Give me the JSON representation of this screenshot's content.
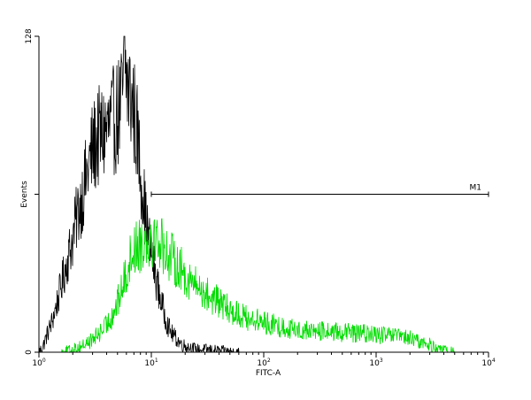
{
  "chart_data": {
    "type": "histogram",
    "xlabel": "FITC-A",
    "ylabel": "Events",
    "x_scale": "log",
    "xlim": [
      1,
      10000
    ],
    "ylim": [
      0,
      128
    ],
    "x_ticks": [
      {
        "value": 1,
        "base": "10",
        "exp": "0"
      },
      {
        "value": 10,
        "base": "10",
        "exp": "1"
      },
      {
        "value": 100,
        "base": "10",
        "exp": "2"
      },
      {
        "value": 1000,
        "base": "10",
        "exp": "3"
      },
      {
        "value": 10000,
        "base": "10",
        "exp": "4"
      }
    ],
    "y_ticks": [
      {
        "value": 0,
        "label": "0"
      },
      {
        "value": 64,
        "label": ""
      },
      {
        "value": 128,
        "label": "128"
      }
    ],
    "marker": {
      "label": "M1",
      "x_start": 10,
      "x_end": 10000,
      "y": 64
    },
    "series": [
      {
        "color": "#000000",
        "points": [
          [
            1.0,
            0
          ],
          [
            1.1,
            3
          ],
          [
            1.2,
            8
          ],
          [
            1.3,
            12
          ],
          [
            1.45,
            20
          ],
          [
            1.6,
            28
          ],
          [
            1.8,
            38
          ],
          [
            2.0,
            46
          ],
          [
            2.2,
            56
          ],
          [
            2.5,
            66
          ],
          [
            2.8,
            76
          ],
          [
            3.0,
            82
          ],
          [
            3.3,
            86
          ],
          [
            3.6,
            88
          ],
          [
            4.0,
            90
          ],
          [
            4.4,
            92
          ],
          [
            4.8,
            95
          ],
          [
            5.2,
            98
          ],
          [
            5.5,
            102
          ],
          [
            5.8,
            118
          ],
          [
            6.1,
            108
          ],
          [
            6.5,
            104
          ],
          [
            7.0,
            98
          ],
          [
            7.5,
            88
          ],
          [
            8.0,
            74
          ],
          [
            8.5,
            64
          ],
          [
            9.0,
            52
          ],
          [
            10.0,
            40
          ],
          [
            11.0,
            30
          ],
          [
            12.0,
            22
          ],
          [
            13.0,
            16
          ],
          [
            14.0,
            11
          ],
          [
            15.0,
            8
          ],
          [
            17.0,
            5
          ],
          [
            19.0,
            3
          ],
          [
            22.0,
            2
          ],
          [
            26.0,
            1
          ],
          [
            32.0,
            1
          ],
          [
            40.0,
            0.5
          ],
          [
            60.0,
            0
          ]
        ]
      },
      {
        "color": "#00dd00",
        "points": [
          [
            1.6,
            0
          ],
          [
            2.0,
            1
          ],
          [
            2.5,
            3
          ],
          [
            3.0,
            5
          ],
          [
            3.5,
            8
          ],
          [
            4.0,
            11
          ],
          [
            4.5,
            15
          ],
          [
            5.0,
            20
          ],
          [
            5.5,
            26
          ],
          [
            6.0,
            32
          ],
          [
            6.5,
            38
          ],
          [
            7.0,
            42
          ],
          [
            8.0,
            44
          ],
          [
            9.0,
            46
          ],
          [
            10.0,
            47
          ],
          [
            11.0,
            46
          ],
          [
            12.0,
            45
          ],
          [
            13.0,
            42
          ],
          [
            14.0,
            40
          ],
          [
            16.0,
            37
          ],
          [
            18.0,
            34
          ],
          [
            20.0,
            31
          ],
          [
            25.0,
            27
          ],
          [
            30.0,
            24
          ],
          [
            40.0,
            20
          ],
          [
            50.0,
            17
          ],
          [
            70.0,
            14
          ],
          [
            100.0,
            12
          ],
          [
            150.0,
            10
          ],
          [
            200.0,
            9
          ],
          [
            300.0,
            8.5
          ],
          [
            500.0,
            8
          ],
          [
            800.0,
            7.5
          ],
          [
            1000.0,
            7
          ],
          [
            1500.0,
            6.5
          ],
          [
            2000.0,
            5.5
          ],
          [
            2500.0,
            4
          ],
          [
            3000.0,
            3
          ],
          [
            3500.0,
            1.5
          ],
          [
            4000.0,
            0.5
          ],
          [
            5000.0,
            0
          ]
        ]
      }
    ]
  }
}
